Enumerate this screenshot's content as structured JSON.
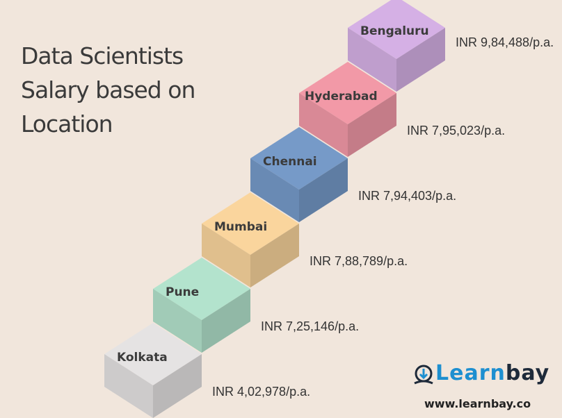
{
  "title_lines": [
    "Data Scientists",
    "Salary based on",
    "Location"
  ],
  "chart_data": {
    "type": "bar",
    "title": "Data Scientists Salary based on Location",
    "categories": [
      "Kolkata",
      "Pune",
      "Mumbai",
      "Chennai",
      "Hyderabad",
      "Bengaluru"
    ],
    "values": [
      402978,
      725146,
      788789,
      794403,
      795023,
      984488
    ],
    "value_labels": [
      "INR 4,02,978/p.a.",
      "INR 7,25,146/p.a.",
      "INR 7,88,789/p.a.",
      "INR 7,94,403/p.a.",
      "INR 7,95,023/p.a.",
      "INR 9,84,488/p.a."
    ],
    "unit": "INR per annum",
    "colors": [
      "#d8d6d6",
      "#a9d6c1",
      "#ecc994",
      "#6f91bd",
      "#e4909e",
      "#c9a6d8"
    ]
  },
  "brand": {
    "name_part1": "Learn",
    "name_part2": "bay",
    "url": "www.learnbay.co",
    "icon": "learnbay-logo-icon"
  }
}
